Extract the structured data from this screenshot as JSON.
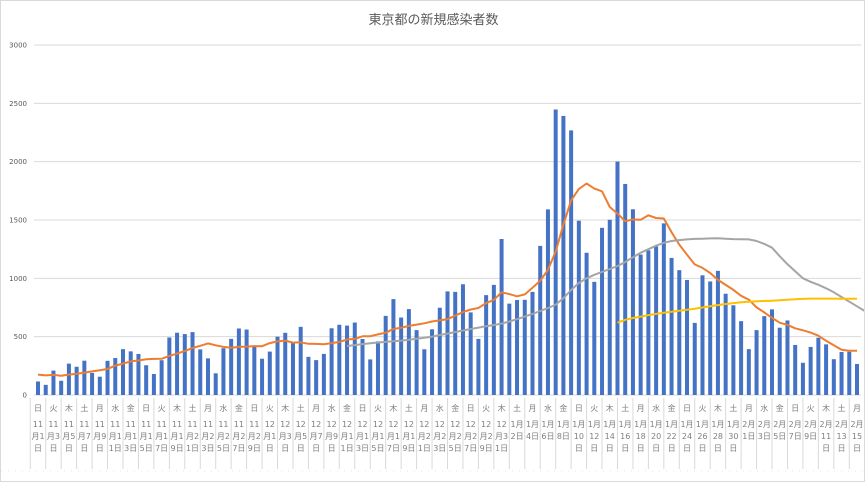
{
  "chart_data": {
    "type": "bar",
    "title": "東京都の新規感染者数",
    "ylim": [
      0,
      3000
    ],
    "yticks": [
      "0",
      "500",
      "1000",
      "1500",
      "2000",
      "2500",
      "3000"
    ],
    "grid": true,
    "colors": {
      "bars": "#4472C4",
      "line_orange": "#ED7D31",
      "line_gray": "#A5A5A5",
      "line_yellow": "#FFC000"
    },
    "x_label_weekdays": [
      "日",
      "火",
      "木",
      "土",
      "月",
      "水",
      "金",
      "日",
      "火",
      "木",
      "土",
      "月",
      "水",
      "金",
      "日",
      "火",
      "木",
      "土",
      "月",
      "水",
      "金",
      "日",
      "火",
      "木",
      "土",
      "月",
      "水",
      "金",
      "日",
      "火",
      "木",
      "土",
      "月",
      "水",
      "金",
      "日",
      "火",
      "木",
      "土",
      "月",
      "水",
      "金",
      "日",
      "火",
      "木",
      "土",
      "月",
      "水",
      "金",
      "日",
      "火",
      "木",
      "土",
      "月"
    ],
    "x_label_dates": [
      "11月1日",
      "11月3日",
      "11月5日",
      "11月7日",
      "11月9日",
      "11月11日",
      "11月13日",
      "11月15日",
      "11月17日",
      "11月19日",
      "11月21日",
      "11月23日",
      "11月25日",
      "11月27日",
      "11月29日",
      "12月1日",
      "12月3日",
      "12月5日",
      "12月7日",
      "12月9日",
      "12月11日",
      "12月13日",
      "12月15日",
      "12月17日",
      "12月19日",
      "12月21日",
      "12月23日",
      "12月25日",
      "12月27日",
      "12月29日",
      "12月31日",
      "1月2日",
      "1月4日",
      "1月6日",
      "1月8日",
      "1月10日",
      "1月12日",
      "1月14日",
      "1月16日",
      "1月18日",
      "1月20日",
      "1月22日",
      "1月24日",
      "1月26日",
      "1月28日",
      "1月30日",
      "2月1日",
      "2月3日",
      "2月5日",
      "2月7日",
      "2月9日",
      "2月11日",
      "2月13日",
      "2月15日"
    ],
    "bars": [
      116,
      87,
      209,
      122,
      269,
      242,
      294,
      189,
      157,
      293,
      317,
      393,
      374,
      352,
      255,
      180,
      298,
      493,
      534,
      522,
      539,
      391,
      314,
      186,
      401,
      481,
      570,
      561,
      418,
      311,
      372,
      500,
      533,
      449,
      584,
      327,
      299,
      352,
      572,
      602,
      595,
      621,
      480,
      305,
      460,
      678,
      822,
      664,
      736,
      556,
      392,
      563,
      748,
      888,
      884,
      949,
      708,
      481,
      856,
      944,
      1337,
      783,
      814,
      816,
      884,
      1278,
      1591,
      2447,
      2392,
      2268,
      1494,
      1219,
      970,
      1433,
      1502,
      2001,
      1809,
      1592,
      1204,
      1240,
      1274,
      1471,
      1175,
      1070,
      986,
      618,
      1026,
      973,
      1064,
      868,
      769,
      633,
      393,
      556,
      676,
      734,
      577,
      639,
      429,
      276,
      412,
      491,
      434,
      307,
      369,
      371,
      266
    ],
    "series": [
      {
        "values": [
          175,
          168,
          172,
          165,
          175,
          182,
          191,
          202,
          212,
          224,
          252,
          269,
          288,
          296,
          306,
          309,
          310,
          335,
          355,
          376,
          403,
          422,
          442,
          426,
          412,
          405,
          412,
          415,
          419,
          418,
          445,
          459,
          466,
          449,
          452,
          439,
          438,
          435,
          445,
          455,
          476,
          481,
          503,
          504,
          519,
          534,
          566,
          576,
          592,
          603,
          615,
          630,
          640,
          650,
          681,
          711,
          733,
          746,
          788,
          816,
          880,
          865,
          846,
          862,
          919,
          979,
          1072,
          1230,
          1460,
          1668,
          1765,
          1813,
          1769,
          1746,
          1611,
          1555,
          1490,
          1504,
          1502,
          1540,
          1517,
          1513,
          1395,
          1289,
          1203,
          1119,
          1089,
          1046,
          987,
          944,
          901,
          850,
          818,
          751,
          708,
          661,
          620,
          601,
          572,
          555,
          535,
          508,
          465,
          427,
          388,
          380,
          379
        ]
      },
      {
        "values": [
          null,
          null,
          null,
          null,
          null,
          null,
          null,
          null,
          null,
          null,
          null,
          null,
          null,
          null,
          null,
          null,
          null,
          null,
          null,
          null,
          null,
          null,
          null,
          null,
          null,
          null,
          null,
          null,
          null,
          null,
          null,
          null,
          null,
          null,
          null,
          null,
          null,
          null,
          null,
          null,
          420,
          428,
          436,
          444,
          450,
          455,
          460,
          466,
          474,
          482,
          490,
          500,
          514,
          526,
          540,
          553,
          566,
          578,
          590,
          600,
          612,
          630,
          650,
          672,
          695,
          720,
          745,
          775,
          830,
          900,
          960,
          1000,
          1030,
          1055,
          1080,
          1105,
          1140,
          1180,
          1220,
          1250,
          1280,
          1305,
          1320,
          1328,
          1334,
          1338,
          1340,
          1342,
          1343,
          1340,
          1336,
          1335,
          1334,
          1320,
          1295,
          1263,
          1190,
          1120,
          1060,
          1000,
          970,
          945,
          915,
          880,
          840,
          800,
          760,
          720
        ]
      },
      {
        "values": [
          null,
          null,
          null,
          null,
          null,
          null,
          null,
          null,
          null,
          null,
          null,
          null,
          null,
          null,
          null,
          null,
          null,
          null,
          null,
          null,
          null,
          null,
          null,
          null,
          null,
          null,
          null,
          null,
          null,
          null,
          null,
          null,
          null,
          null,
          null,
          null,
          null,
          null,
          null,
          null,
          null,
          null,
          null,
          null,
          null,
          null,
          null,
          null,
          null,
          null,
          null,
          null,
          null,
          null,
          null,
          null,
          null,
          null,
          null,
          null,
          null,
          null,
          null,
          null,
          null,
          null,
          null,
          null,
          null,
          null,
          null,
          null,
          null,
          null,
          null,
          620,
          645,
          660,
          672,
          684,
          695,
          705,
          714,
          722,
          730,
          740,
          750,
          760,
          771,
          780,
          788,
          795,
          800,
          803,
          806,
          808,
          812,
          816,
          820,
          824,
          826,
          826,
          826,
          826,
          825,
          825,
          825
        ]
      }
    ]
  }
}
